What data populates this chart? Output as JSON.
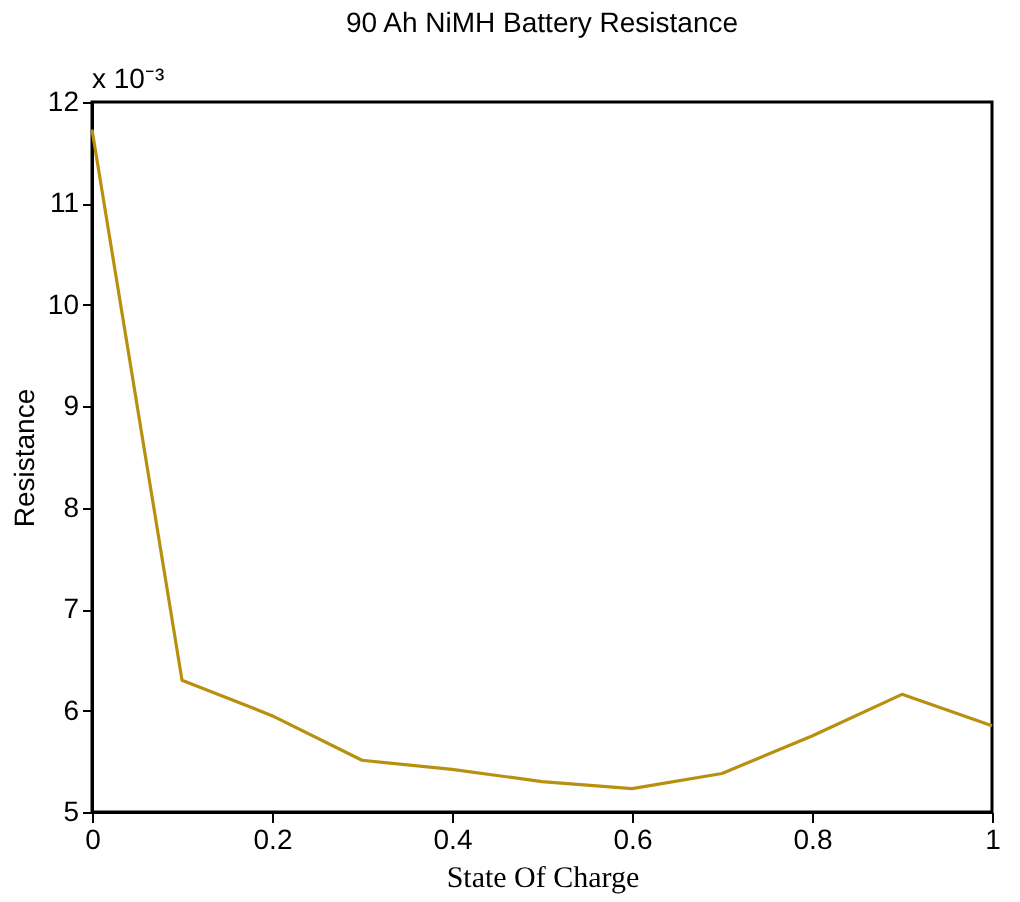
{
  "chart_data": {
    "type": "line",
    "title": "90 Ah NiMH Battery Resistance",
    "xlabel": "State Of Charge",
    "ylabel": "Resistance",
    "annotations": [
      "x 10⁻³"
    ],
    "x": [
      0,
      0.1,
      0.2,
      0.3,
      0.4,
      0.5,
      0.6,
      0.7,
      0.8,
      0.9,
      1.0
    ],
    "series": [
      {
        "color": "#b89010",
        "values": [
          11.73,
          6.3,
          5.95,
          5.51,
          5.42,
          5.3,
          5.23,
          5.38,
          5.75,
          6.16,
          5.85
        ]
      }
    ],
    "xlim": [
      0,
      1
    ],
    "xticks": [
      0,
      0.2,
      0.4,
      0.6,
      0.8,
      1
    ],
    "ylim": [
      5,
      12
    ],
    "yticks": [
      5,
      6,
      7,
      8,
      9,
      10,
      11,
      12
    ],
    "grid": false,
    "marker": "none",
    "line_style": "solid"
  }
}
